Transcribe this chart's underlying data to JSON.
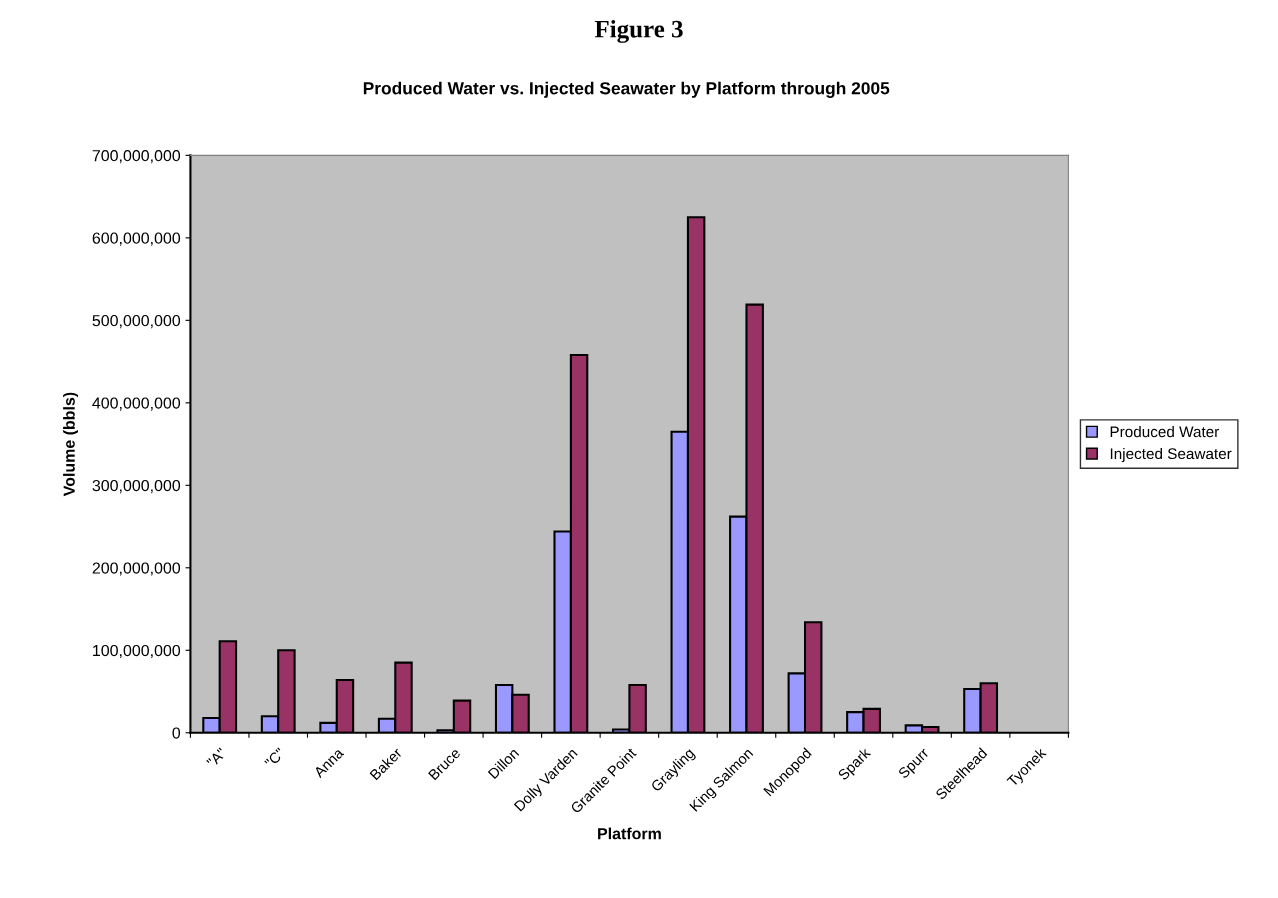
{
  "chart_data": {
    "type": "bar",
    "title": "Figure 3",
    "subtitle": "Produced Water vs. Injected Seawater by Platform through 2005",
    "xlabel": "Platform",
    "ylabel": "Volume (bbls)",
    "categories": [
      "\"A\"",
      "\"C\"",
      "Anna",
      "Baker",
      "Bruce",
      "Dillon",
      "Dolly Varden",
      "Granite Point",
      "Grayling",
      "King Salmon",
      "Monopod",
      "Spark",
      "Spurr",
      "Steelhead",
      "Tyonek"
    ],
    "series": [
      {
        "name": "Produced Water",
        "color": "#9999ff",
        "values": [
          18000000,
          20000000,
          12000000,
          17000000,
          3000000,
          58000000,
          244000000,
          4000000,
          365000000,
          262000000,
          72000000,
          25000000,
          9000000,
          53000000,
          null
        ]
      },
      {
        "name": "Injected Seawater",
        "color": "#993366",
        "values": [
          111000000,
          100000000,
          64000000,
          85000000,
          39000000,
          46000000,
          458000000,
          58000000,
          625000000,
          519000000,
          134000000,
          29000000,
          7000000,
          60000000,
          null
        ]
      }
    ],
    "ylim": [
      0,
      700000000
    ],
    "yticks": [
      {
        "value": 0,
        "label": "0"
      },
      {
        "value": 100000000,
        "label": "100,000,000"
      },
      {
        "value": 200000000,
        "label": "200,000,000"
      },
      {
        "value": 300000000,
        "label": "300,000,000"
      },
      {
        "value": 400000000,
        "label": "400,000,000"
      },
      {
        "value": 500000000,
        "label": "500,000,000"
      },
      {
        "value": 600000000,
        "label": "600,000,000"
      },
      {
        "value": 700000000,
        "label": "700,000,000"
      }
    ],
    "grid": false,
    "legend": "right"
  }
}
